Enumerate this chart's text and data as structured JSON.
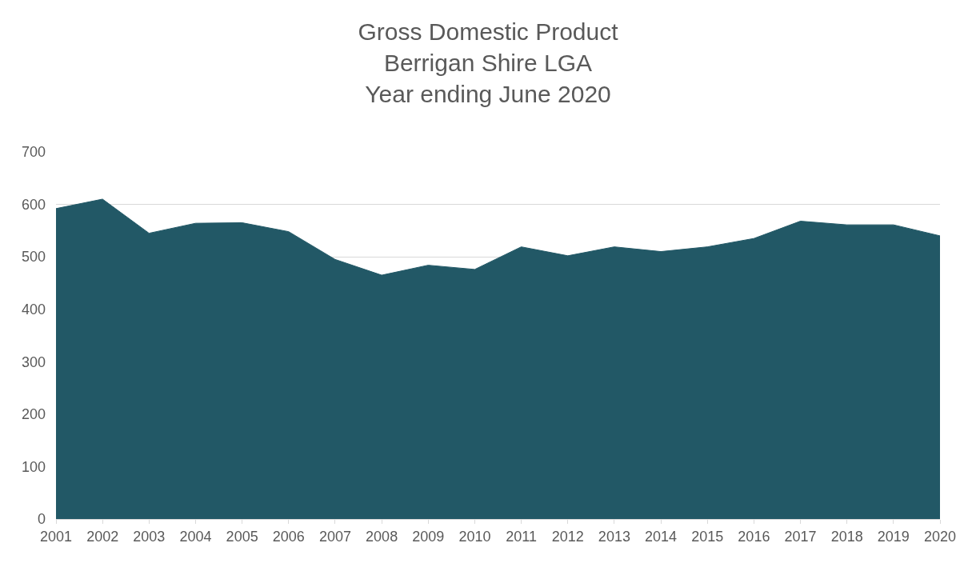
{
  "chart_data": {
    "type": "area",
    "title": "Gross Domestic Product\nBerrigan Shire LGA\nYear ending June 2020",
    "categories": [
      "2001",
      "2002",
      "2003",
      "2004",
      "2005",
      "2006",
      "2007",
      "2008",
      "2009",
      "2010",
      "2011",
      "2012",
      "2013",
      "2014",
      "2015",
      "2016",
      "2017",
      "2018",
      "2019",
      "2020"
    ],
    "series": [
      {
        "color": "#225866",
        "values": [
          592,
          610,
          545,
          564,
          565,
          548,
          495,
          465,
          484,
          476,
          519,
          502,
          519,
          510,
          519,
          535,
          568,
          561,
          561,
          540
        ]
      }
    ],
    "ylim": [
      0,
      700
    ],
    "yticks": [
      0,
      100,
      200,
      300,
      400,
      500,
      600,
      700
    ],
    "grid": "y"
  }
}
